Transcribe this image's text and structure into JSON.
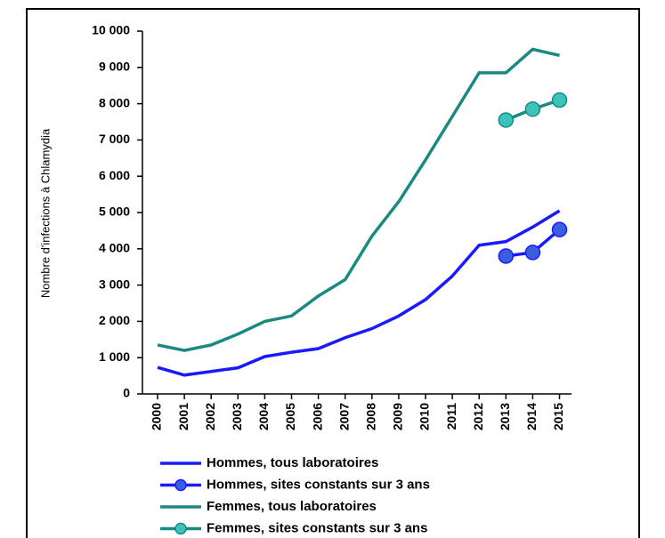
{
  "chart_data": {
    "type": "line",
    "y_label": "Nombre d'infections à Chlamydia",
    "categories": [
      "2000",
      "2001",
      "2002",
      "2003",
      "2004",
      "2005",
      "2006",
      "2007",
      "2008",
      "2009",
      "2010",
      "2011",
      "2012",
      "2013",
      "2014",
      "2015"
    ],
    "series": [
      {
        "name": "Hommes, tous laboratoires",
        "color": "#1a1aff",
        "marker": false,
        "values": [
          730,
          520,
          620,
          720,
          1030,
          1150,
          1250,
          1550,
          1800,
          2150,
          2600,
          3250,
          4100,
          4200,
          4600,
          5050
        ]
      },
      {
        "name": "Hommes, sites constants sur 3 ans",
        "color": "#1a1aff",
        "marker": true,
        "marker_color": "#3a5ee0",
        "values": [
          null,
          null,
          null,
          null,
          null,
          null,
          null,
          null,
          null,
          null,
          null,
          null,
          null,
          3800,
          3900,
          4530
        ]
      },
      {
        "name": "Femmes, tous laboratoires",
        "color": "#1a8a80",
        "marker": false,
        "values": [
          1350,
          1200,
          1350,
          1650,
          2000,
          2150,
          2700,
          3150,
          4350,
          5300,
          6450,
          7650,
          8850,
          8850,
          9500,
          9330
        ]
      },
      {
        "name": "Femmes, sites constants sur 3 ans",
        "color": "#1a8a80",
        "marker": true,
        "marker_color": "#3cc4bc",
        "values": [
          null,
          null,
          null,
          null,
          null,
          null,
          null,
          null,
          null,
          null,
          null,
          null,
          null,
          7550,
          7850,
          8100
        ]
      }
    ],
    "ylim": [
      0,
      10000
    ],
    "yticks": [
      0,
      {
        "value": 1000,
        "label": "1 000"
      },
      {
        "value": 2000,
        "label": "2 000"
      },
      {
        "value": 3000,
        "label": "3 000"
      },
      {
        "value": 4000,
        "label": "4 000"
      },
      {
        "value": 5000,
        "label": "5 000"
      },
      {
        "value": 6000,
        "label": "6 000"
      },
      {
        "value": 7000,
        "label": "7 000"
      },
      {
        "value": 8000,
        "label": "8 000"
      },
      {
        "value": 9000,
        "label": "9 000"
      },
      {
        "value": 10000,
        "label": "10 000"
      }
    ],
    "grid": false
  }
}
